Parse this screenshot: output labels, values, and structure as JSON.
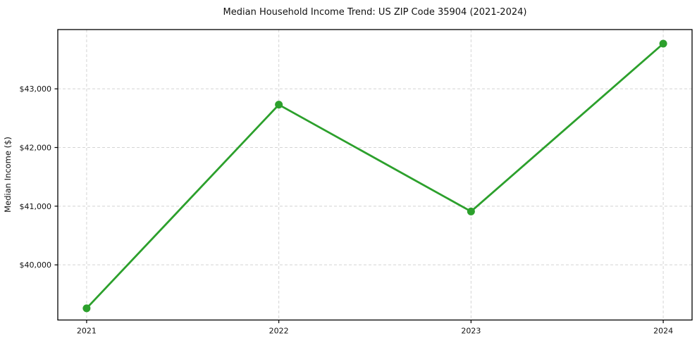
{
  "page": {
    "background": "#ffffff"
  },
  "chart_data": {
    "type": "line",
    "title": "Median Household Income Trend: US ZIP Code 35904 (2021-2024)",
    "xlabel": "",
    "ylabel": "Median Income ($)",
    "x": [
      2021,
      2022,
      2023,
      2024
    ],
    "x_tick_labels": [
      "2021",
      "2022",
      "2023",
      "2024"
    ],
    "y_ticks": [
      40000,
      41000,
      42000,
      43000
    ],
    "y_tick_labels": [
      "$40,000",
      "$41,000",
      "$42,000",
      "$43,000"
    ],
    "series": [
      {
        "name": "Median Household Income",
        "values": [
          39260,
          42730,
          40910,
          43770
        ],
        "color": "#2ca02c",
        "marker": "circle",
        "marker_radius": 5.5,
        "line_width": 2.8
      }
    ],
    "xlim": [
      2020.85,
      2024.15
    ],
    "ylim": [
      39060,
      44010
    ],
    "grid": true,
    "grid_style": "dashed",
    "grid_color": "#d4d4d4",
    "spine_color": "#000000",
    "legend": false
  }
}
